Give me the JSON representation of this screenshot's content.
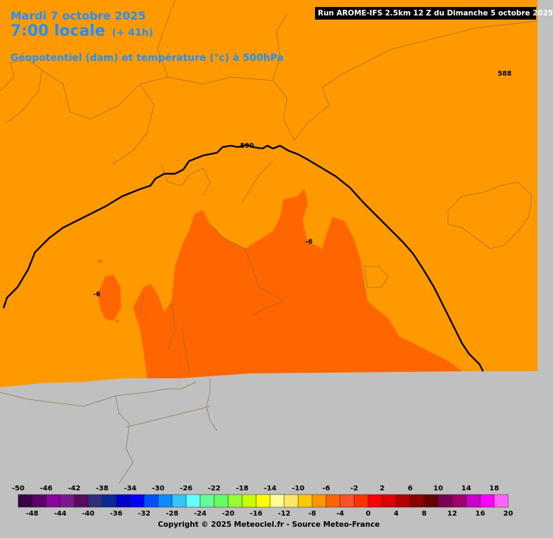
{
  "header": {
    "date": "Mardi 7 octobre 2025",
    "time": "7:00 locale",
    "lead": "(+ 41h)",
    "parameter": "Géopotentiel (dam) et température (°c) à 500hPa",
    "run": "Run AROME-IFS 2.5km 12 Z du Dimanche 5 octobre 2025"
  },
  "map_labels": {
    "geopotential_588": "588",
    "geopotential_590": "590",
    "temp_east": "-6",
    "temp_west": "-6"
  },
  "legend": {
    "top_labels": [
      "-50",
      "-46",
      "-42",
      "-38",
      "-34",
      "-30",
      "-26",
      "-22",
      "-18",
      "-14",
      "-10",
      "-6",
      "-2",
      "2",
      "6",
      "10",
      "14",
      "18"
    ],
    "bottom_labels": [
      "-48",
      "-44",
      "-40",
      "-36",
      "-32",
      "-28",
      "-24",
      "-20",
      "-16",
      "-12",
      "-8",
      "-4",
      "0",
      "4",
      "8",
      "12",
      "16",
      "20"
    ],
    "colors": [
      "#3a0045",
      "#5a0066",
      "#8a00a0",
      "#7a1a8a",
      "#5c0a5c",
      "#2e2e7a",
      "#0a2a9a",
      "#0000cc",
      "#0000ff",
      "#0050ff",
      "#0a8cff",
      "#32c8ff",
      "#64ffff",
      "#64ff96",
      "#64ff64",
      "#96ff32",
      "#c8ff00",
      "#ffff00",
      "#ffff96",
      "#ffe664",
      "#ffc800",
      "#ff9600",
      "#ff6400",
      "#ff5028",
      "#ff3200",
      "#ff0000",
      "#dc0000",
      "#b40000",
      "#8c0000",
      "#640000",
      "#7a0050",
      "#a0006e",
      "#c800c8",
      "#ff00ff",
      "#ff64ff"
    ],
    "copyright": "Copyright © 2025 Meteociel.fr - Source Meteo-France"
  },
  "field_colors": {
    "minus8_to_minus6": "#ff9900",
    "minus6_to_minus4": "#ff6600",
    "no_data": "#c0c0c0"
  }
}
